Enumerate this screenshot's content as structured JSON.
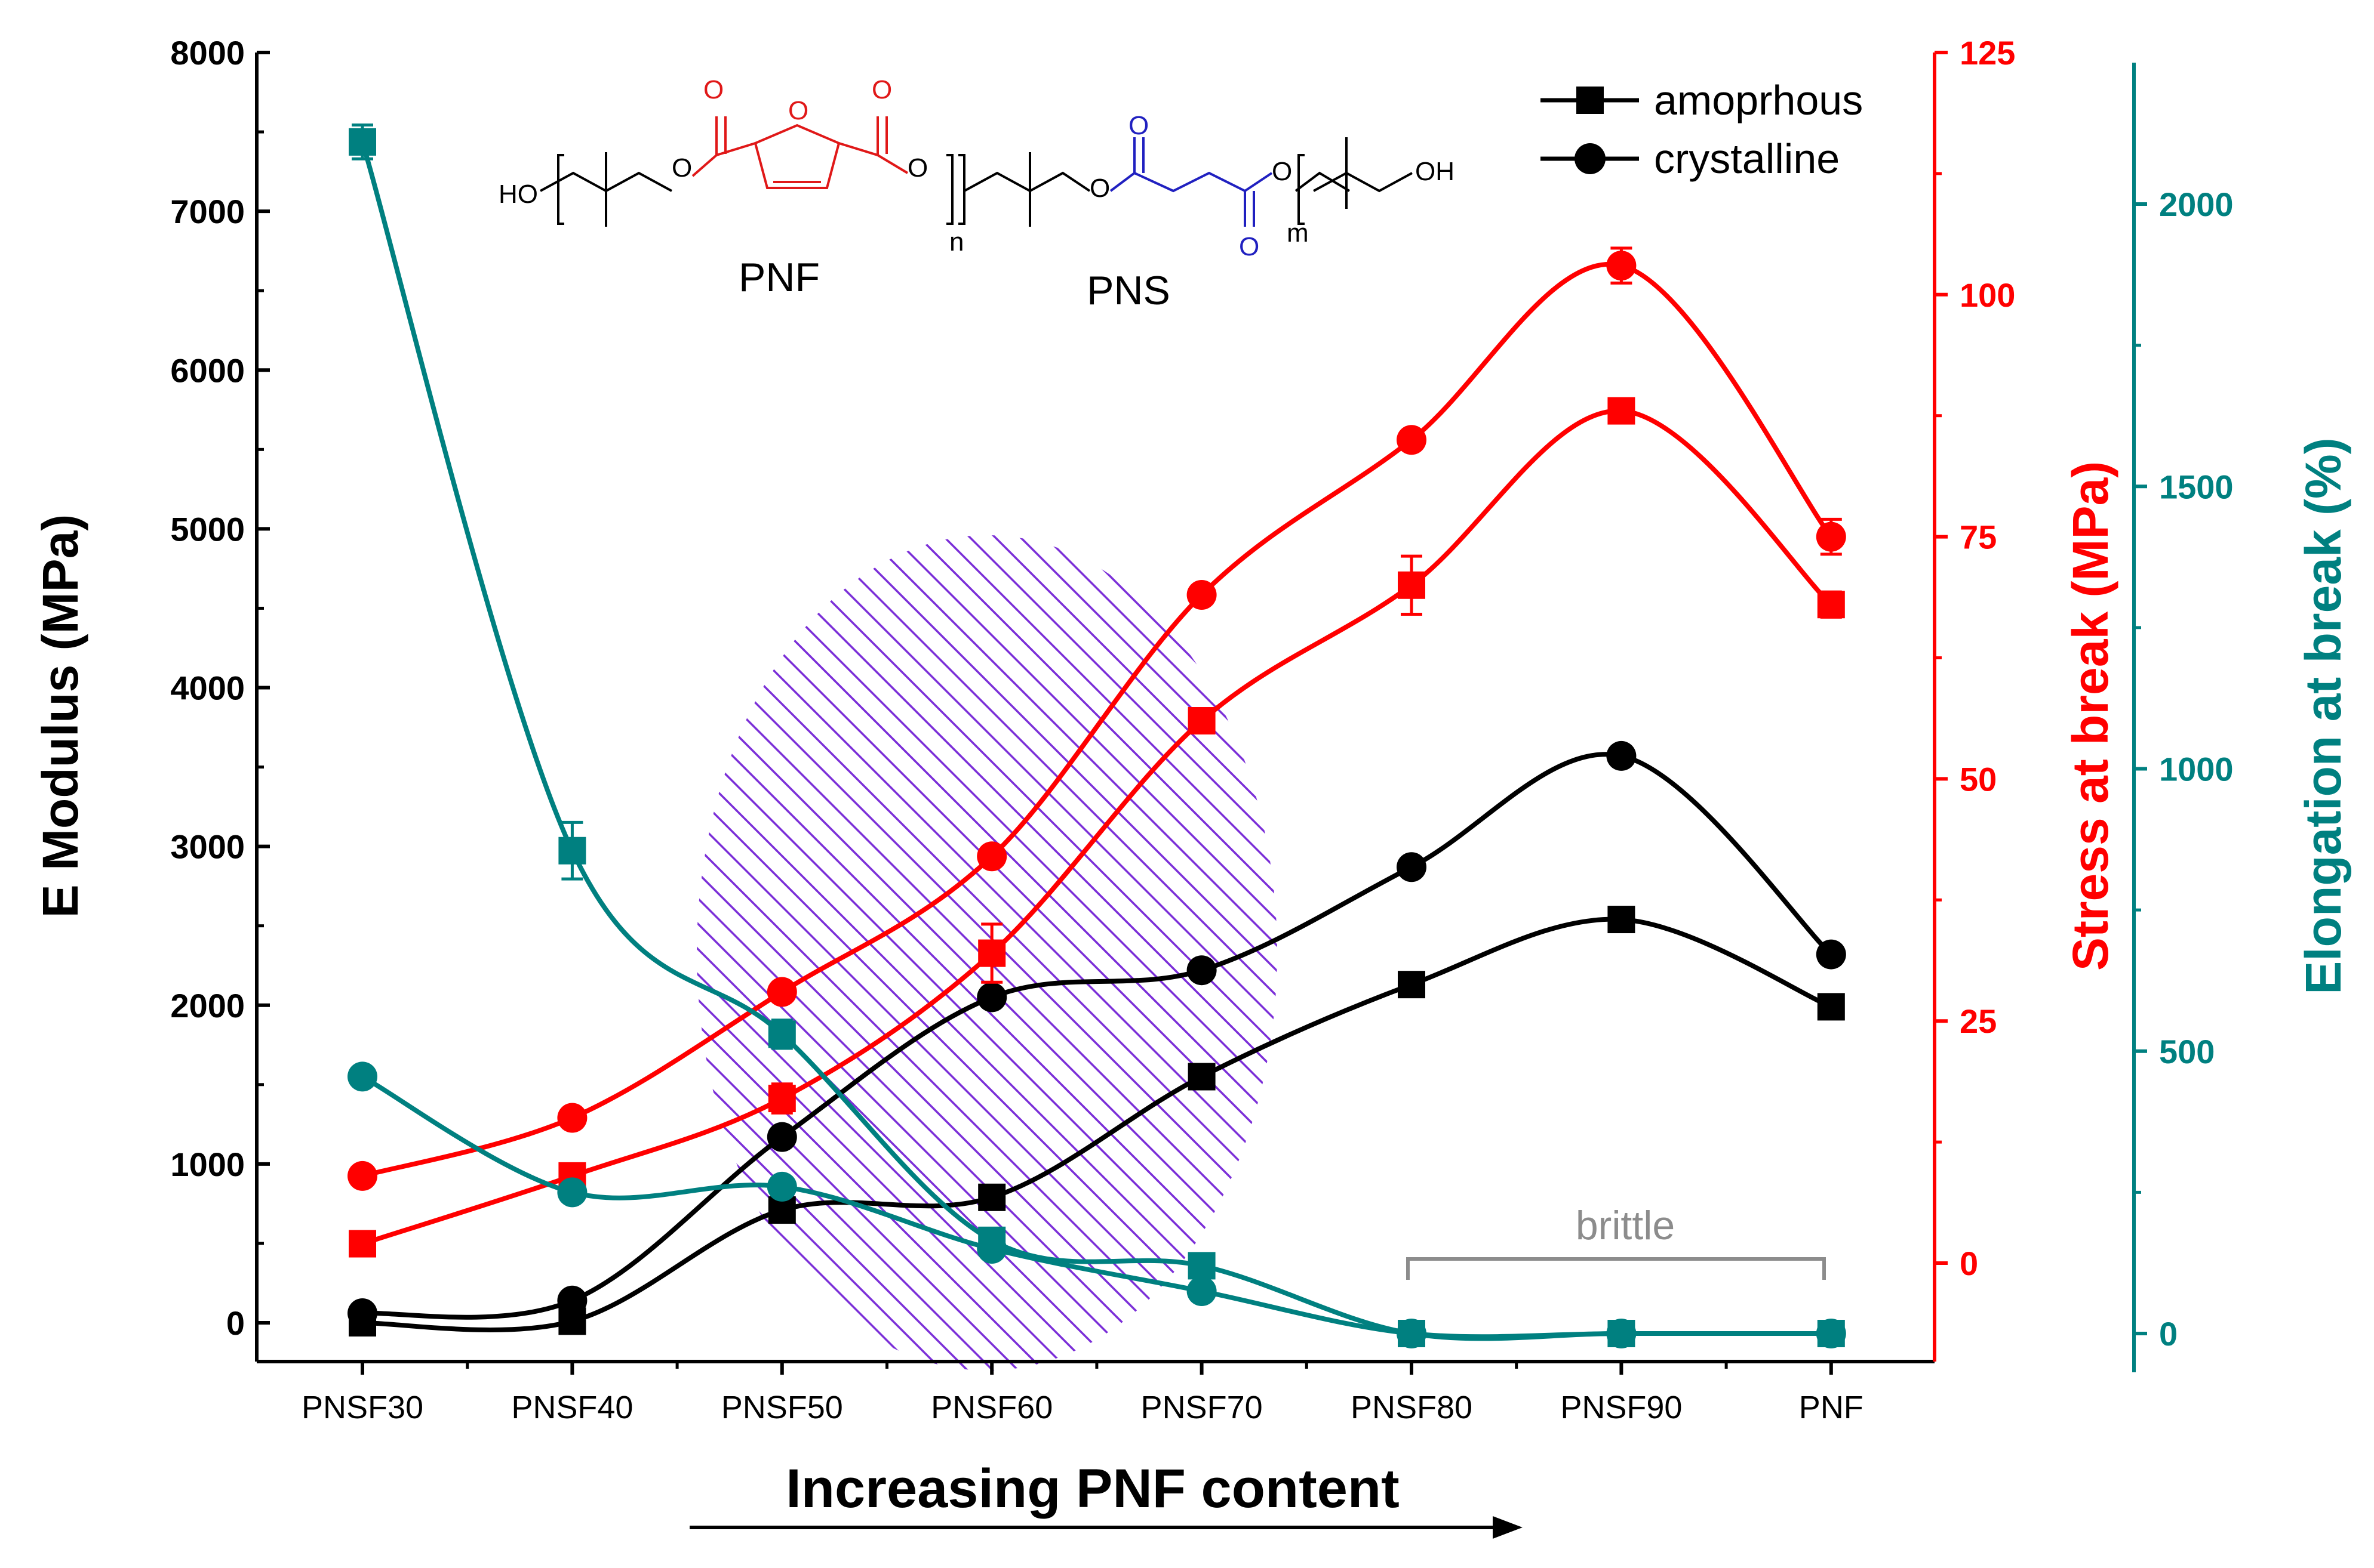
{
  "colors": {
    "modulus": "#000000",
    "stress": "#ff0000",
    "elongation": "#008080",
    "hatch": "#7b2fd8",
    "bracket": "#8c8c8c",
    "pnf_struct": "#e01818",
    "pns_struct": "#2020c0"
  },
  "chart_data": {
    "type": "line",
    "categories": [
      "PNSF30",
      "PNSF40",
      "PNSF50",
      "PNSF60",
      "PNSF70",
      "PNSF80",
      "PNSF90",
      "PNF"
    ],
    "xlabel": "Increasing PNF content",
    "axes": {
      "left": {
        "label": "E Modulus (MPa)",
        "ylim": [
          -300,
          8000
        ],
        "ticks": [
          0,
          1000,
          2000,
          3000,
          4000,
          5000,
          6000,
          7000,
          8000
        ]
      },
      "right1": {
        "label": "Stress at break (MPa)",
        "ylim": [
          -10,
          125
        ],
        "ticks": [
          0,
          25,
          50,
          75,
          100,
          125
        ]
      },
      "right2": {
        "label": "Elongation at break (%)",
        "ylim": [
          -80,
          2250
        ],
        "ticks": [
          0,
          500,
          1000,
          1500,
          2000
        ]
      }
    },
    "series": [
      {
        "name": "E Modulus amorphous",
        "axis": "left",
        "marker": "square",
        "color": "#000000",
        "values": [
          0,
          10,
          710,
          790,
          1550,
          2130,
          2540,
          1990
        ]
      },
      {
        "name": "E Modulus crystalline",
        "axis": "left",
        "marker": "circle",
        "color": "#000000",
        "values": [
          60,
          140,
          1170,
          2050,
          2220,
          2870,
          3570,
          2320
        ]
      },
      {
        "name": "Stress amorphous",
        "axis": "right1",
        "marker": "square",
        "color": "#ff0000",
        "values": [
          2,
          9,
          17,
          32,
          56,
          70,
          88,
          68
        ],
        "errors": [
          0,
          0,
          1.5,
          3,
          0,
          3,
          0,
          1.3
        ]
      },
      {
        "name": "Stress crystalline",
        "axis": "right1",
        "marker": "circle",
        "color": "#ff0000",
        "values": [
          9,
          15,
          28,
          42,
          69,
          85,
          103,
          75
        ],
        "errors": [
          0,
          0,
          0,
          0,
          0,
          0,
          1.8,
          1.8
        ]
      },
      {
        "name": "Elongation amorphous",
        "axis": "right2",
        "marker": "square",
        "color": "#008080",
        "values": [
          2110,
          855,
          530,
          165,
          120,
          0,
          0,
          0
        ],
        "errors": [
          30,
          50,
          25,
          0,
          0,
          0,
          0,
          0
        ]
      },
      {
        "name": "Elongation crystalline",
        "axis": "right2",
        "marker": "circle",
        "color": "#008080",
        "values": [
          455,
          250,
          260,
          150,
          75,
          0,
          0,
          0
        ]
      }
    ],
    "legend": {
      "position": "top-right",
      "entries": [
        {
          "label": "amoprhous",
          "marker": "square"
        },
        {
          "label": "crystalline",
          "marker": "circle"
        }
      ]
    },
    "annotations": {
      "brittle": {
        "text": "brittle",
        "from": "PNSF80",
        "to": "PNF"
      },
      "hatched_region": {
        "center": "PNSF60",
        "span": [
          "PNSF50",
          "PNSF80"
        ]
      },
      "structure": {
        "pnf_label": "PNF",
        "pns_label": "PNS",
        "ho": "HO",
        "oh": "OH",
        "n": "n",
        "m": "m",
        "o": "O"
      }
    }
  }
}
